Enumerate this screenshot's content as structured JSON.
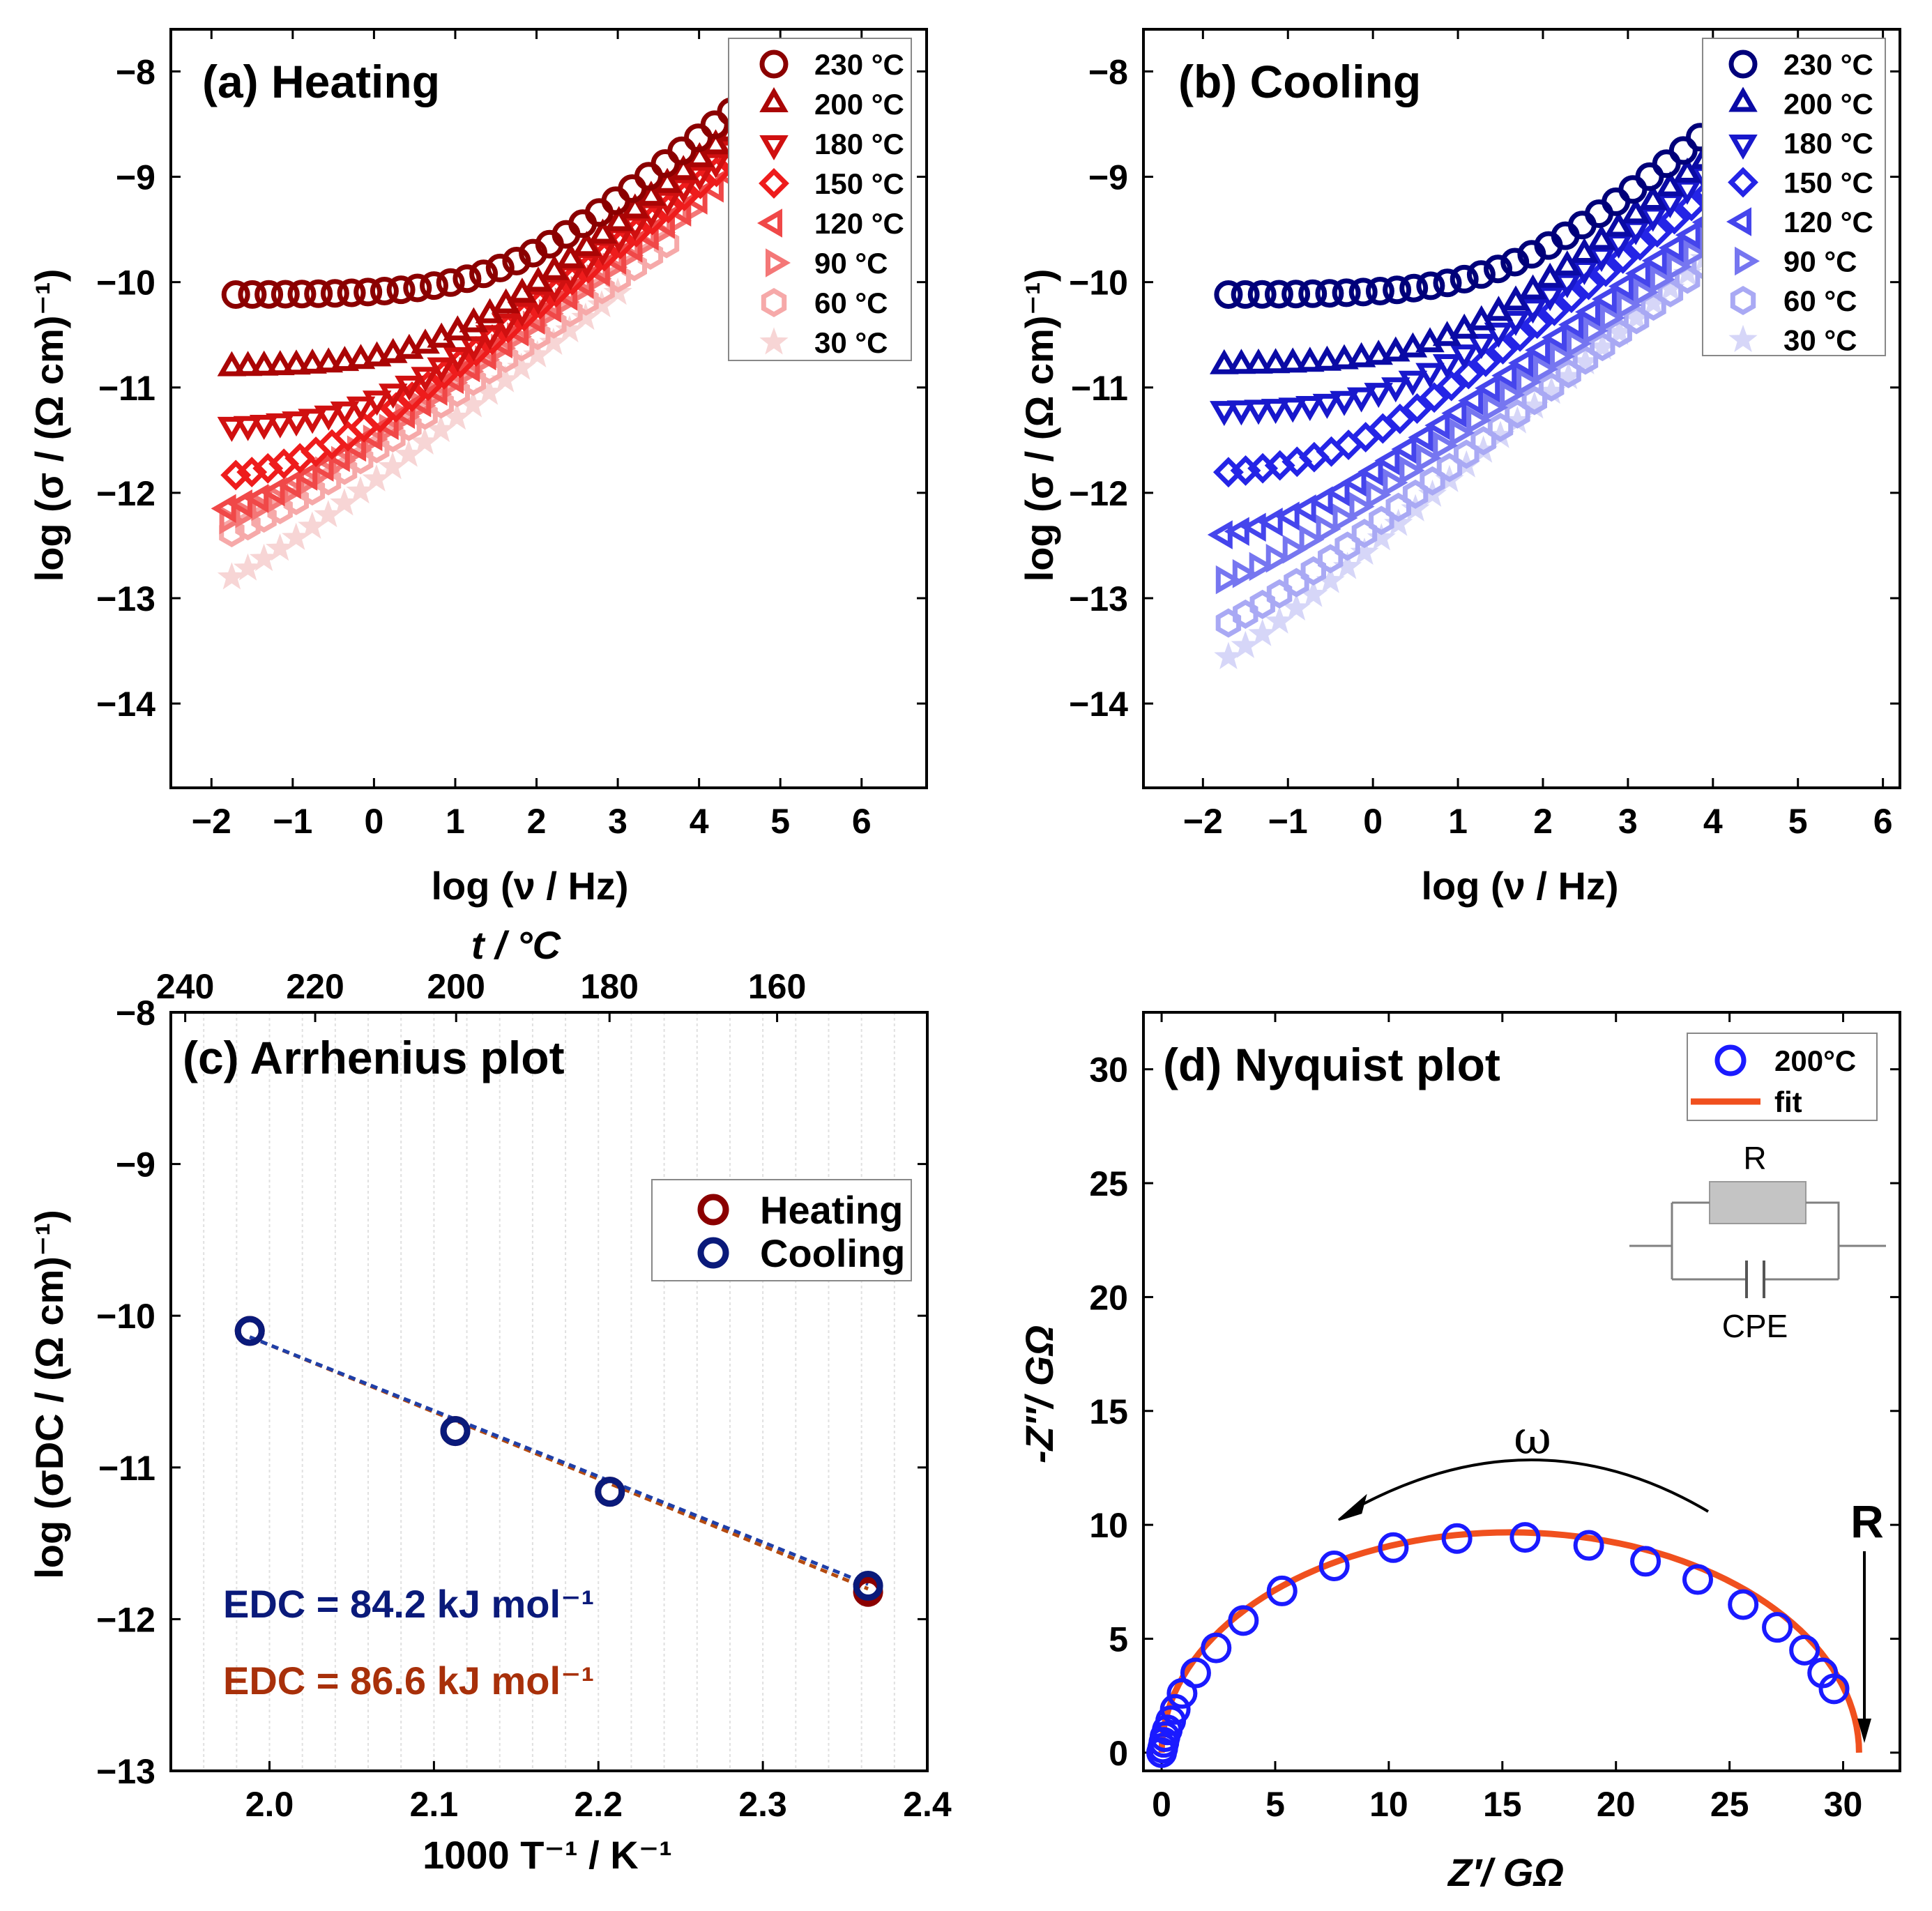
{
  "panels": {
    "a": {
      "title": "(a) Heating",
      "xlabel": "log (ν / Hz)",
      "ylabel": "log (σ / (Ω cm)⁻¹)",
      "xticks": [
        "−2",
        "−1",
        "0",
        "1",
        "2",
        "3",
        "4",
        "5",
        "6"
      ],
      "yticks": [
        "−8",
        "−9",
        "−10",
        "−11",
        "−12",
        "−13",
        "−14"
      ]
    },
    "b": {
      "title": "(b) Cooling",
      "xlabel": "log (ν / Hz)",
      "ylabel": "log (σ / (Ω cm)⁻¹)",
      "xticks": [
        "−2",
        "−1",
        "0",
        "1",
        "2",
        "3",
        "4",
        "5",
        "6"
      ],
      "yticks": [
        "−8",
        "−9",
        "−10",
        "−11",
        "−12",
        "−13",
        "−14"
      ]
    },
    "c": {
      "title": "(c) Arrhenius plot",
      "xlabel": "1000 T⁻¹ / K⁻¹",
      "ylabel": "log (σDC / (Ω cm)⁻¹)",
      "top_label": "t / °C",
      "xticks": [
        "2.0",
        "2.1",
        "2.2",
        "2.3",
        "2.4"
      ],
      "yticks": [
        "−8",
        "−9",
        "−10",
        "−11",
        "−12",
        "−13"
      ],
      "top_ticks": [
        "240",
        "220",
        "200",
        "180",
        "160"
      ],
      "legend": [
        "Heating",
        "Cooling"
      ],
      "annotation_cooling": "EDC = 84.2 kJ mol⁻¹",
      "annotation_heating": "EDC = 86.6 kJ mol⁻¹"
    },
    "d": {
      "title": "(d) Nyquist plot",
      "xlabel": "Z′/ GΩ",
      "ylabel": "-Z″/ GΩ",
      "xticks": [
        "0",
        "5",
        "10",
        "15",
        "20",
        "25",
        "30"
      ],
      "yticks": [
        "0",
        "5",
        "10",
        "15",
        "20",
        "25",
        "30"
      ],
      "legend": [
        "200°C",
        "fit"
      ],
      "circuit_R": "R",
      "circuit_CPE": "CPE",
      "omega_label": "ω",
      "R_label": "R"
    }
  },
  "chart_data": [
    {
      "type": "scatter",
      "panel": "a",
      "title": "(a) Heating",
      "xlabel": "log (ν / Hz)",
      "ylabel": "log (σ / (Ω cm)⁻¹)",
      "xlim": [
        -2.5,
        6.8
      ],
      "ylim": [
        -14.8,
        -7.6
      ],
      "series": [
        {
          "name": "230 °C",
          "marker": "circle",
          "color": "#8b0000",
          "dc": -10.12,
          "x0": -1.7,
          "x1": 4.6,
          "xc": 1.6,
          "slope": 0.62
        },
        {
          "name": "200 °C",
          "marker": "triangle-up",
          "color": "#aa0505",
          "dc": -10.82,
          "x0": -1.75,
          "x1": 4.8,
          "xc": 0.8,
          "slope": 0.62
        },
        {
          "name": "180 °C",
          "marker": "triangle-down",
          "color": "#d01010",
          "dc": -11.38,
          "x0": -1.75,
          "x1": 5.0,
          "xc": 0.0,
          "slope": 0.6
        },
        {
          "name": "150 °C",
          "marker": "diamond",
          "color": "#ee1c1c",
          "dc": -11.92,
          "x0": -1.7,
          "x1": 5.2,
          "xc": -0.9,
          "slope": 0.58
        },
        {
          "name": "120 °C",
          "marker": "triangle-left",
          "color": "#f04848",
          "dc": -12.3,
          "x0": -1.8,
          "x1": 4.8,
          "xc": -1.4,
          "slope": 0.57
        },
        {
          "name": "90 °C",
          "marker": "triangle-right",
          "color": "#f47777",
          "dc": -12.5,
          "x0": -1.8,
          "x1": 3.9,
          "xc": -1.8,
          "slope": 0.56
        },
        {
          "name": "60 °C",
          "marker": "hexagon",
          "color": "#f6a9a9",
          "dc": -12.66,
          "x0": -1.75,
          "x1": 3.6,
          "xc": -1.9,
          "slope": 0.55
        },
        {
          "name": "30 °C",
          "marker": "star",
          "color": "#f7d5d5",
          "dc": -13.22,
          "x0": -1.75,
          "x1": 3.0,
          "xc": -2.2,
          "slope": 0.6
        }
      ]
    },
    {
      "type": "scatter",
      "panel": "b",
      "title": "(b) Cooling",
      "xlabel": "log (ν / Hz)",
      "ylabel": "log (σ / (Ω cm)⁻¹)",
      "xlim": [
        -2.7,
        6.2
      ],
      "ylim": [
        -14.8,
        -7.6
      ],
      "series": [
        {
          "name": "230 °C",
          "marker": "circle",
          "color": "#00007a",
          "dc": -10.12,
          "x0": -1.7,
          "x1": 3.85,
          "xc": 1.6,
          "slope": 0.66
        },
        {
          "name": "200 °C",
          "marker": "triangle-up",
          "color": "#0a0aa5",
          "dc": -10.8,
          "x0": -1.75,
          "x1": 3.9,
          "xc": 0.9,
          "slope": 0.65
        },
        {
          "name": "180 °C",
          "marker": "triangle-down",
          "color": "#1818cc",
          "dc": -11.22,
          "x0": -1.75,
          "x1": 3.9,
          "xc": 0.4,
          "slope": 0.64
        },
        {
          "name": "150 °C",
          "marker": "diamond",
          "color": "#2424e6",
          "dc": -11.85,
          "x0": -1.7,
          "x1": 3.95,
          "xc": -0.4,
          "slope": 0.62
        },
        {
          "name": "120 °C",
          "marker": "triangle-left",
          "color": "#4545ec",
          "dc": -12.5,
          "x0": -1.75,
          "x1": 3.95,
          "xc": -1.0,
          "slope": 0.62
        },
        {
          "name": "90 °C",
          "marker": "triangle-right",
          "color": "#7676f0",
          "dc": -13.05,
          "x0": -1.75,
          "x1": 3.95,
          "xc": -1.6,
          "slope": 0.62
        },
        {
          "name": "60 °C",
          "marker": "hexagon",
          "color": "#a9a9f4",
          "dc": -13.62,
          "x0": -1.7,
          "x1": 3.9,
          "xc": -2.0,
          "slope": 0.64
        },
        {
          "name": "30 °C",
          "marker": "star",
          "color": "#d6d6f8",
          "dc": -14.12,
          "x0": -1.7,
          "x1": 3.9,
          "xc": -2.3,
          "slope": 0.7
        }
      ]
    },
    {
      "type": "scatter",
      "panel": "c",
      "title": "(c) Arrhenius plot",
      "xlabel": "1000 T⁻¹ / K⁻¹",
      "ylabel": "log (σDC / (Ω cm)⁻¹)",
      "xlim": [
        1.94,
        2.4
      ],
      "ylim": [
        -13,
        -8
      ],
      "top_axis": {
        "label": "t / °C",
        "ticks": [
          240,
          220,
          200,
          180,
          160
        ]
      },
      "series": [
        {
          "name": "Heating",
          "color": "#8b0000",
          "x": [
            1.988,
            2.113,
            2.207,
            2.364
          ],
          "y": [
            -10.1,
            -10.76,
            -11.16,
            -11.82
          ]
        },
        {
          "name": "Cooling",
          "color": "#0a1a7a",
          "x": [
            1.988,
            2.113,
            2.207,
            2.364
          ],
          "y": [
            -10.1,
            -10.76,
            -11.16,
            -11.78
          ]
        }
      ],
      "fits": [
        {
          "name": "Heating fit",
          "color": "#b44a10",
          "x": [
            1.988,
            2.364
          ],
          "y": [
            -10.14,
            -11.8
          ]
        },
        {
          "name": "Cooling fit",
          "color": "#1f3fa8",
          "x": [
            1.988,
            2.364
          ],
          "y": [
            -10.14,
            -11.77
          ]
        }
      ],
      "annotations": [
        "EDC = 84.2 kJ mol⁻¹",
        "EDC = 86.6 kJ mol⁻¹"
      ]
    },
    {
      "type": "scatter",
      "panel": "d",
      "title": "(d) Nyquist plot",
      "xlabel": "Z′/ GΩ",
      "ylabel": "-Z″/ GΩ",
      "xlim": [
        -0.8,
        32.5
      ],
      "ylim": [
        -0.8,
        32.5
      ],
      "series": [
        {
          "name": "200°C",
          "color": "#1a1aff",
          "x": [
            0.0,
            0.05,
            0.1,
            0.15,
            0.25,
            0.4,
            0.6,
            0.9,
            1.5,
            2.4,
            3.6,
            5.3,
            7.6,
            10.2,
            13.0,
            16.0,
            18.8,
            21.3,
            23.6,
            25.6,
            27.1,
            28.3,
            29.1,
            29.6
          ],
          "y": [
            0.0,
            0.2,
            0.45,
            0.7,
            1.0,
            1.4,
            1.9,
            2.6,
            3.5,
            4.6,
            5.8,
            7.1,
            8.2,
            9.0,
            9.4,
            9.45,
            9.1,
            8.4,
            7.6,
            6.5,
            5.5,
            4.5,
            3.5,
            2.8
          ]
        },
        {
          "name": "fit",
          "color": "#f0501e",
          "type": "line",
          "center": 15.35,
          "radius": 15.35,
          "depression": 0.63
        }
      ],
      "annotations": [
        "ω",
        "R"
      ]
    }
  ]
}
